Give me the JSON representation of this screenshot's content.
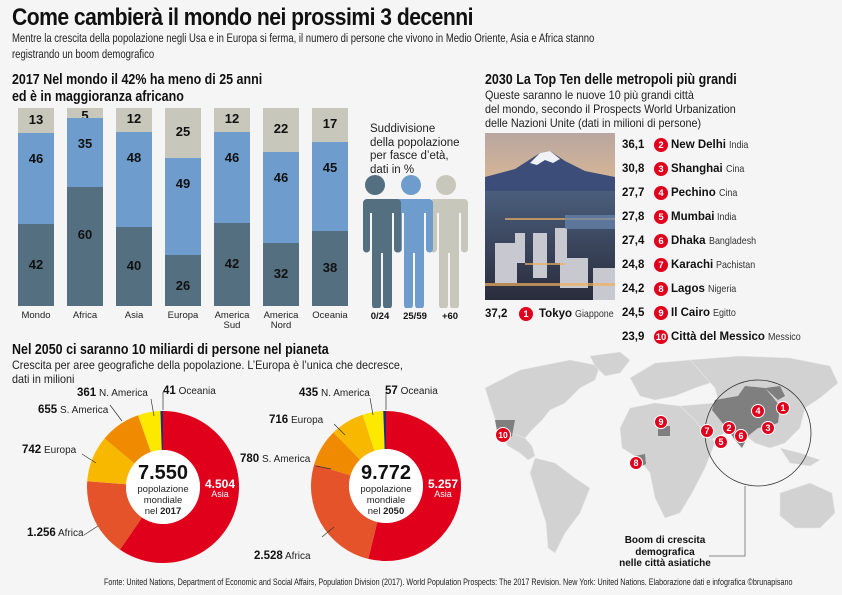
{
  "header": {
    "title": "Come cambierà il mondo nei prossimi 3 decenni",
    "subtitle_line1": "Mentre la crescita della popolazione negli Usa e in Europa si ferma, il numero di persone che vivono in Medio Oriente, Asia e Africa stanno",
    "subtitle_line2": "registrando un boom demografico"
  },
  "age_section": {
    "title_line1": "2017 Nel mondo il 42% ha meno di 25 anni",
    "title_line2": "ed è in maggioranza africano",
    "legend_text": [
      "Suddivisione",
      "della popolazione",
      "per fasce d’età,",
      "dati in %"
    ],
    "legend_labels": [
      "0/24",
      "25/59",
      "+60"
    ],
    "colors": {
      "young": "#546f80",
      "mid": "#6e9ccd",
      "old": "#c8c7bb"
    }
  },
  "cities_section": {
    "title": "2030 La Top Ten delle metropoli più grandi",
    "desc_line1": "Queste saranno le nuove 10 più grandi città",
    "desc_line2": "del mondo, secondo il Prospects World Urbanization",
    "desc_line3": "delle Nazioni Unite (dati in milioni di persone)",
    "cities": [
      {
        "rank": "1",
        "value": "37,2",
        "name": "Tokyo",
        "country": "Giappone"
      },
      {
        "rank": "2",
        "value": "36,1",
        "name": "New Delhi",
        "country": "India"
      },
      {
        "rank": "3",
        "value": "30,8",
        "name": "Shanghai",
        "country": "Cina"
      },
      {
        "rank": "4",
        "value": "27,7",
        "name": "Pechino",
        "country": "Cina"
      },
      {
        "rank": "5",
        "value": "27,8",
        "name": "Mumbai",
        "country": "India"
      },
      {
        "rank": "6",
        "value": "27,4",
        "name": "Dhaka",
        "country": "Bangladesh"
      },
      {
        "rank": "7",
        "value": "24,8",
        "name": "Karachi",
        "country": "Pachistan"
      },
      {
        "rank": "8",
        "value": "24,2",
        "name": "Lagos",
        "country": "Nigeria"
      },
      {
        "rank": "9",
        "value": "24,5",
        "name": "Il Cairo",
        "country": "Egitto"
      },
      {
        "rank": "10",
        "value": "23,9",
        "name": "Città del Messico",
        "country": "Messico"
      }
    ],
    "photo_icon": "mount-fuji-city-photo"
  },
  "population_section": {
    "title": "Nel 2050 ci saranno 10 miliardi di persone nel pianeta",
    "desc_line1": "Crescita per aree geografiche della popolazione. L’Europa è l’unica che decresce,",
    "desc_line2": "dati in milioni",
    "donut_2017": {
      "total": "7.550",
      "line1": "popolazione",
      "line2": "mondiale",
      "year_prefix": "nel",
      "year": "2017",
      "asia_value": "4.504",
      "asia_label": "Asia",
      "labels": {
        "oceania": {
          "value": "41",
          "name": "Oceania"
        },
        "n_america": {
          "value": "361",
          "name": "N. America"
        },
        "s_america": {
          "value": "655",
          "name": "S. America"
        },
        "europa": {
          "value": "742",
          "name": "Europa"
        },
        "africa": {
          "value": "1.256",
          "name": "Africa"
        }
      }
    },
    "donut_2050": {
      "total": "9.772",
      "line1": "popolazione",
      "line2": "mondiale",
      "year_prefix": "nel",
      "year": "2050",
      "asia_value": "5.257",
      "asia_label": "Asia",
      "labels": {
        "oceania": {
          "value": "57",
          "name": "Oceania"
        },
        "n_america": {
          "value": "435",
          "name": "N. America"
        },
        "europa": {
          "value": "716",
          "name": "Europa"
        },
        "s_america": {
          "value": "780",
          "name": "S. America"
        },
        "africa": {
          "value": "2.528",
          "name": "Africa"
        }
      }
    },
    "colors": {
      "asia": "#e0001b",
      "africa": "#e4532a",
      "europa": "#f9b800",
      "s_america": "#f08a00",
      "n_america": "#fde800",
      "oceania": "#1c2f7a"
    }
  },
  "map": {
    "caption_line1": "Boom di crescita",
    "caption_line2": "demografica",
    "caption_line3": "nelle città asiatiche",
    "markers": [
      "1",
      "2",
      "3",
      "4",
      "5",
      "6",
      "7",
      "8",
      "9",
      "10"
    ]
  },
  "footer": {
    "source": "Fonte: United Nations, Department of Economic and Social Affairs, Population Division (2017). World Population Prospects: The 2017 Revision. New York: United Nations. Elaborazione dati e infografica ©brunapisano"
  },
  "chart_data": [
    {
      "type": "bar",
      "title": "2017 Nel mondo il 42% ha meno di 25 anni ed è in maggioranza africano",
      "subtitle": "Suddivisione della popolazione per fasce d’età, dati in %",
      "stacked": true,
      "categories": [
        "Mondo",
        "Africa",
        "Asia",
        "Europa",
        "America Sud",
        "America Nord",
        "Oceania"
      ],
      "series": [
        {
          "name": "0/24",
          "values": [
            42,
            60,
            40,
            26,
            42,
            32,
            38
          ]
        },
        {
          "name": "25/59",
          "values": [
            46,
            35,
            48,
            49,
            46,
            46,
            45
          ]
        },
        {
          "name": "+60",
          "values": [
            13,
            5,
            12,
            25,
            12,
            22,
            17
          ]
        }
      ],
      "ylim": [
        0,
        100
      ]
    },
    {
      "type": "pie",
      "title": "popolazione mondiale nel 2017",
      "total": 7550,
      "categories": [
        "Asia",
        "Africa",
        "Europa",
        "S. America",
        "N. America",
        "Oceania"
      ],
      "values": [
        4504,
        1256,
        742,
        655,
        361,
        41
      ]
    },
    {
      "type": "pie",
      "title": "popolazione mondiale nel 2050",
      "total": 9772,
      "categories": [
        "Asia",
        "Africa",
        "S. America",
        "Europa",
        "N. America",
        "Oceania"
      ],
      "values": [
        5257,
        2528,
        780,
        716,
        435,
        57
      ]
    },
    {
      "type": "table",
      "title": "2030 La Top Ten delle metropoli più grandi (milioni)",
      "categories": [
        "Tokyo",
        "New Delhi",
        "Shanghai",
        "Pechino",
        "Mumbai",
        "Dhaka",
        "Karachi",
        "Lagos",
        "Il Cairo",
        "Città del Messico"
      ],
      "values": [
        37.2,
        36.1,
        30.8,
        27.7,
        27.8,
        27.4,
        24.8,
        24.2,
        24.5,
        23.9
      ]
    }
  ]
}
